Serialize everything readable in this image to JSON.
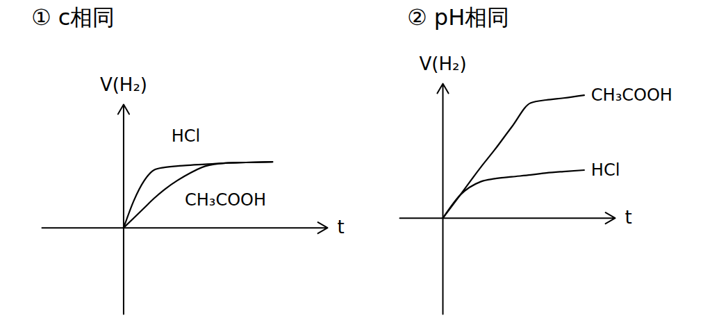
{
  "chart_data": [
    {
      "type": "line",
      "title": "① c相同",
      "x_label": "t",
      "y_label": "V(H₂)",
      "xlim": [
        -4,
        10
      ],
      "ylim": [
        -7,
        10
      ],
      "tick_labels": false,
      "x": [
        0,
        0.5,
        1,
        1.5,
        2,
        3,
        4,
        5,
        6,
        7.3
      ],
      "series": [
        {
          "name": "HCl",
          "color": "#000000",
          "values": [
            0,
            2.2,
            3.8,
            4.7,
            4.9,
            5.05,
            5.15,
            5.25,
            5.3,
            5.35
          ]
        },
        {
          "name": "CH₃COOH",
          "color": "#000000",
          "values": [
            0,
            0.8,
            1.6,
            2.4,
            3.1,
            4.2,
            5.0,
            5.25,
            5.3,
            5.35
          ]
        }
      ]
    },
    {
      "type": "line",
      "title": "② pH相同",
      "x_label": "t",
      "y_label": "V(H₂)",
      "xlim": [
        -2.5,
        10
      ],
      "ylim": [
        -10,
        14
      ],
      "tick_labels": false,
      "x": [
        0,
        1,
        2.2,
        3,
        4,
        5.1,
        6,
        7,
        8.2
      ],
      "series": [
        {
          "name": "CH₃COOH",
          "color": "#000000",
          "values": [
            0,
            2.4,
            5.3,
            7.1,
            9.5,
            12.0,
            12.3,
            12.5,
            12.8
          ]
        },
        {
          "name": "HCl",
          "color": "#000000",
          "values": [
            0,
            2.4,
            3.8,
            4.1,
            4.3,
            4.5,
            4.7,
            4.85,
            5.0
          ]
        }
      ]
    }
  ]
}
